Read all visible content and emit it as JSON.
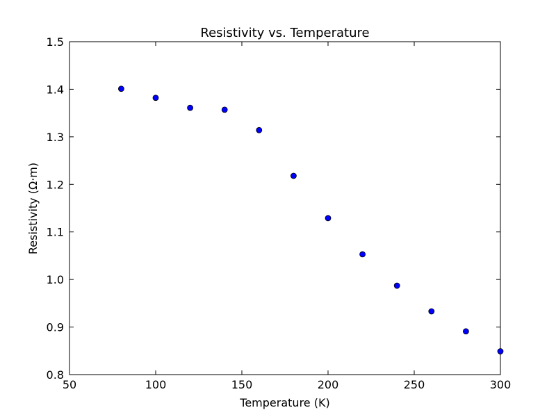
{
  "chart_data": {
    "type": "scatter",
    "title": "Resistivity vs. Temperature",
    "xlabel": "Temperature (K)",
    "ylabel": "Resistivity (Ω·m)",
    "xlim": [
      50,
      300
    ],
    "ylim": [
      0.8,
      1.5
    ],
    "x_ticks": [
      "50",
      "100",
      "150",
      "200",
      "250",
      "300"
    ],
    "y_ticks": [
      "0.8",
      "0.9",
      "1.0",
      "1.1",
      "1.2",
      "1.3",
      "1.4",
      "1.5"
    ],
    "grid": false,
    "series": [
      {
        "x": [
          80,
          100,
          120,
          140,
          160,
          180,
          200,
          220,
          240,
          260,
          280,
          300
        ],
        "y": [
          1.401,
          1.382,
          1.361,
          1.357,
          1.314,
          1.218,
          1.129,
          1.053,
          0.987,
          0.933,
          0.891,
          0.849
        ],
        "color": "#0000ff",
        "marker": "circle"
      }
    ]
  }
}
